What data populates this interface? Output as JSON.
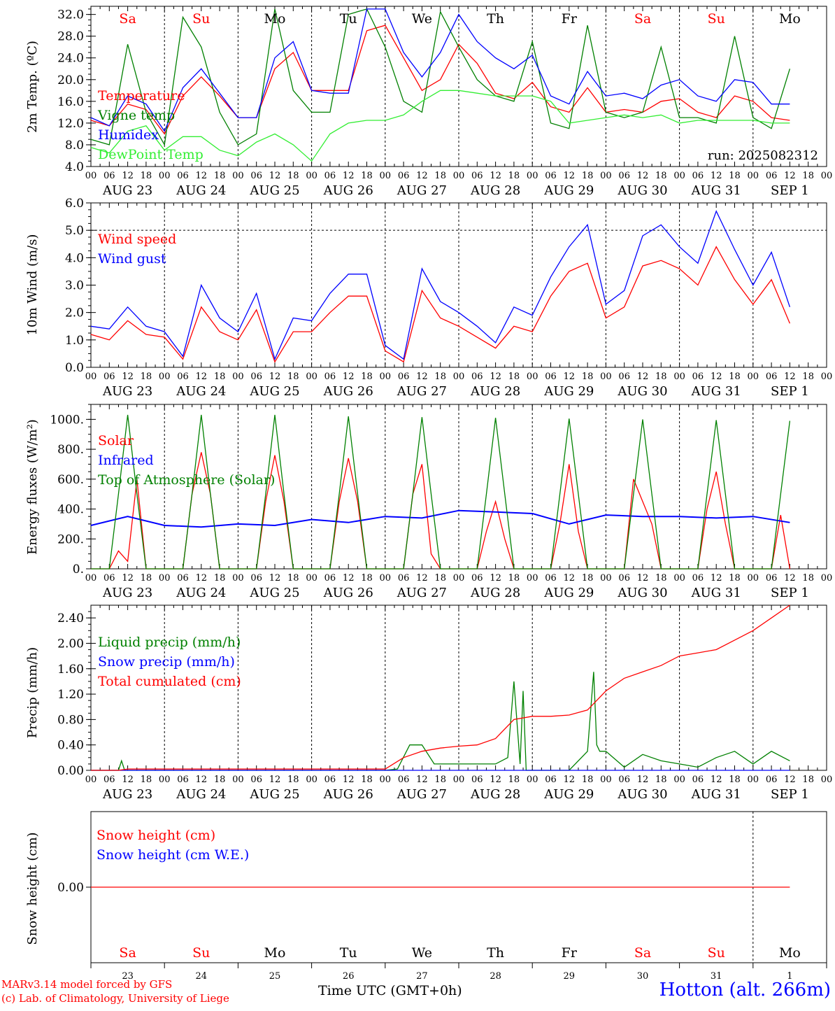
{
  "chart_data": [
    {
      "type": "line",
      "ylabel": "2m Temp. (ºC)",
      "ylim": [
        4,
        33.5
      ],
      "yticks": [
        "4.0",
        "8.0",
        "12.0",
        "16.0",
        "20.0",
        "24.0",
        "28.0",
        "32.0"
      ],
      "annotation": "run: 2025082312",
      "series": [
        {
          "name": "Temperature",
          "color": "#ff0000",
          "x": [
            0,
            6,
            12,
            18,
            24,
            30,
            36,
            42,
            48,
            54,
            60,
            66,
            72,
            78,
            84,
            90,
            96,
            102,
            108,
            114,
            120,
            126,
            132,
            138,
            144,
            150,
            156,
            162,
            168,
            174,
            180,
            186,
            192,
            198,
            204,
            210,
            216,
            222,
            228
          ],
          "values": [
            12.5,
            11.5,
            15.5,
            14.5,
            10,
            17,
            20.5,
            17,
            13,
            13,
            22,
            25,
            18,
            18,
            18,
            29,
            30,
            24,
            18,
            20,
            26.5,
            23,
            17.5,
            16.5,
            19.5,
            15,
            14,
            18.5,
            14,
            14.5,
            14,
            16,
            16.5,
            14,
            13,
            17,
            16,
            13,
            12.5
          ]
        },
        {
          "name": "Vigne temp",
          "color": "#008000",
          "x": [
            0,
            6,
            12,
            18,
            24,
            30,
            36,
            42,
            48,
            54,
            60,
            66,
            72,
            78,
            84,
            90,
            96,
            102,
            108,
            114,
            120,
            126,
            132,
            138,
            144,
            150,
            156,
            162,
            168,
            174,
            180,
            186,
            192,
            198,
            204,
            210,
            216,
            222,
            228
          ],
          "values": [
            9,
            8,
            26.5,
            14,
            8,
            31.5,
            26,
            14,
            8,
            10,
            33,
            18,
            14,
            14,
            32,
            33,
            26,
            16,
            14,
            32.5,
            26,
            20,
            17,
            16,
            27,
            12,
            11,
            30,
            14,
            13,
            14,
            26,
            13,
            13,
            12,
            28,
            13,
            11,
            22
          ]
        },
        {
          "name": "Humidex",
          "color": "#0000ff",
          "x": [
            0,
            6,
            12,
            18,
            24,
            30,
            36,
            42,
            48,
            54,
            60,
            66,
            72,
            78,
            84,
            90,
            96,
            102,
            108,
            114,
            120,
            126,
            132,
            138,
            144,
            150,
            156,
            162,
            168,
            174,
            180,
            186,
            192,
            198,
            204,
            210,
            216,
            222,
            228
          ],
          "values": [
            13,
            11.5,
            17,
            15.5,
            10.5,
            18.5,
            22,
            17.5,
            13,
            13,
            24,
            27,
            18,
            17.5,
            17.5,
            33,
            33,
            25,
            20.5,
            25,
            32,
            27,
            24,
            22,
            24.5,
            17,
            15.5,
            21.5,
            17,
            17.5,
            16.5,
            19,
            20,
            17,
            16,
            20,
            19.5,
            15.5,
            15.5
          ]
        },
        {
          "name": "DewPoint Temp",
          "color": "#33ee33",
          "x": [
            0,
            6,
            12,
            18,
            24,
            30,
            36,
            42,
            48,
            54,
            60,
            66,
            72,
            78,
            84,
            90,
            96,
            102,
            108,
            114,
            120,
            126,
            132,
            138,
            144,
            150,
            156,
            162,
            168,
            174,
            180,
            186,
            192,
            198,
            204,
            210,
            216,
            222,
            228
          ],
          "values": [
            7.5,
            6.5,
            10.5,
            11.5,
            7,
            9.5,
            9.5,
            7,
            6,
            8.5,
            10,
            8,
            5,
            10,
            12,
            12.5,
            12.5,
            13.5,
            16,
            18,
            18,
            17.5,
            17,
            17,
            17,
            16,
            12,
            12.5,
            13,
            13.5,
            13,
            13.5,
            12,
            12.5,
            12.5,
            12.5,
            12.5,
            12,
            12
          ]
        }
      ]
    },
    {
      "type": "line",
      "ylabel": "10m Wind (m/s)",
      "ylim": [
        0,
        6
      ],
      "yticks": [
        "0.0",
        "1.0",
        "2.0",
        "3.0",
        "4.0",
        "5.0",
        "6.0"
      ],
      "reference_line": 5.0,
      "series": [
        {
          "name": "Wind speed",
          "color": "#ff0000",
          "x": [
            0,
            6,
            12,
            18,
            24,
            30,
            36,
            42,
            48,
            54,
            60,
            66,
            72,
            78,
            84,
            90,
            96,
            102,
            108,
            114,
            120,
            126,
            132,
            138,
            144,
            150,
            156,
            162,
            168,
            174,
            180,
            186,
            192,
            198,
            204,
            210,
            216,
            222,
            228
          ],
          "values": [
            1.2,
            1.0,
            1.7,
            1.2,
            1.1,
            0.3,
            2.2,
            1.3,
            1.0,
            2.1,
            0.2,
            1.3,
            1.3,
            2.0,
            2.6,
            2.6,
            0.6,
            0.2,
            2.8,
            1.8,
            1.5,
            1.1,
            0.7,
            1.5,
            1.3,
            2.6,
            3.5,
            3.8,
            1.8,
            2.2,
            3.7,
            3.9,
            3.6,
            3.0,
            4.4,
            3.2,
            2.3,
            3.2,
            1.6
          ]
        },
        {
          "name": "Wind gust",
          "color": "#0000ff",
          "x": [
            0,
            6,
            12,
            18,
            24,
            30,
            36,
            42,
            48,
            54,
            60,
            66,
            72,
            78,
            84,
            90,
            96,
            102,
            108,
            114,
            120,
            126,
            132,
            138,
            144,
            150,
            156,
            162,
            168,
            174,
            180,
            186,
            192,
            198,
            204,
            210,
            216,
            222,
            228
          ],
          "values": [
            1.5,
            1.4,
            2.2,
            1.5,
            1.3,
            0.4,
            3.0,
            1.8,
            1.3,
            2.7,
            0.3,
            1.8,
            1.7,
            2.7,
            3.4,
            3.4,
            0.8,
            0.3,
            3.6,
            2.4,
            2.0,
            1.5,
            0.9,
            2.2,
            1.9,
            3.3,
            4.4,
            5.2,
            2.3,
            2.8,
            4.8,
            5.2,
            4.4,
            3.8,
            5.7,
            4.3,
            3.0,
            4.2,
            2.2
          ]
        }
      ]
    },
    {
      "type": "line",
      "ylabel": "Energy fluxes (W/m²)",
      "ylim": [
        0,
        1100
      ],
      "yticks": [
        "0.",
        "200.",
        "400.",
        "600.",
        "800.",
        "1000."
      ],
      "series": [
        {
          "name": "Solar",
          "color": "#ff0000",
          "x": [
            0,
            6,
            9,
            12,
            15,
            18,
            24,
            30,
            33,
            36,
            39,
            42,
            48,
            54,
            57,
            60,
            63,
            66,
            72,
            78,
            81,
            84,
            87,
            90,
            96,
            102,
            105,
            108,
            111,
            114,
            120,
            126,
            129,
            132,
            135,
            138,
            144,
            150,
            153,
            156,
            159,
            162,
            168,
            174,
            177,
            180,
            183,
            186,
            192,
            198,
            201,
            204,
            207,
            210,
            216,
            222,
            225,
            228
          ],
          "values": [
            0,
            0,
            120,
            50,
            600,
            0,
            0,
            0,
            500,
            780,
            500,
            0,
            0,
            0,
            450,
            760,
            450,
            0,
            0,
            0,
            450,
            740,
            450,
            0,
            0,
            0,
            500,
            700,
            100,
            0,
            0,
            0,
            250,
            450,
            200,
            0,
            0,
            0,
            300,
            700,
            250,
            0,
            0,
            0,
            600,
            450,
            300,
            0,
            0,
            0,
            400,
            650,
            300,
            0,
            0,
            0,
            360,
            0
          ]
        },
        {
          "name": "Infrared",
          "color": "#0000ff",
          "x": [
            0,
            12,
            24,
            36,
            48,
            60,
            72,
            84,
            96,
            108,
            120,
            132,
            144,
            156,
            168,
            180,
            192,
            204,
            216,
            228
          ],
          "values": [
            290,
            350,
            290,
            280,
            300,
            290,
            330,
            310,
            350,
            340,
            390,
            380,
            370,
            300,
            360,
            350,
            350,
            340,
            350,
            310
          ]
        },
        {
          "name": "Top of Atmosphere (Solar)",
          "color": "#008000",
          "x": [
            0,
            6,
            9,
            12,
            15,
            18,
            24,
            30,
            33,
            36,
            39,
            42,
            48,
            54,
            57,
            60,
            63,
            66,
            72,
            78,
            81,
            84,
            87,
            90,
            96,
            102,
            105,
            108,
            111,
            114,
            120,
            126,
            129,
            132,
            135,
            138,
            144,
            150,
            153,
            156,
            159,
            162,
            168,
            174,
            177,
            180,
            183,
            186,
            192,
            198,
            201,
            204,
            207,
            210,
            216,
            222,
            225,
            228
          ],
          "values": [
            0,
            0,
            500,
            1030,
            500,
            0,
            0,
            0,
            500,
            1030,
            500,
            0,
            0,
            0,
            500,
            1030,
            500,
            0,
            0,
            0,
            500,
            1020,
            500,
            0,
            0,
            0,
            500,
            1015,
            500,
            0,
            0,
            0,
            500,
            1010,
            500,
            0,
            0,
            0,
            500,
            1005,
            500,
            0,
            0,
            0,
            500,
            1000,
            500,
            0,
            0,
            0,
            500,
            995,
            500,
            0,
            0,
            0,
            500,
            990
          ]
        }
      ]
    },
    {
      "type": "line",
      "ylabel": "Precip (mm/h)",
      "ylim": [
        0,
        2.6
      ],
      "yticks": [
        "0.00",
        "0.40",
        "0.80",
        "1.20",
        "1.60",
        "2.00",
        "2.40"
      ],
      "series": [
        {
          "name": "Liquid precip (mm/h)",
          "color": "#008000",
          "x": [
            0,
            9,
            10,
            11,
            12,
            24,
            48,
            72,
            96,
            100,
            104,
            108,
            112,
            120,
            126,
            132,
            136,
            138,
            140,
            141,
            142,
            143,
            144,
            150,
            156,
            162,
            164,
            165,
            166,
            168,
            174,
            180,
            186,
            192,
            198,
            204,
            210,
            216,
            222,
            228
          ],
          "values": [
            0,
            0,
            0.15,
            0,
            0,
            0,
            0,
            0,
            0,
            0.02,
            0.4,
            0.4,
            0.1,
            0.1,
            0.1,
            0.1,
            0.2,
            1.4,
            0.1,
            1.25,
            0,
            0,
            0,
            0,
            0,
            0.3,
            1.55,
            0.4,
            0.3,
            0.3,
            0.05,
            0.25,
            0.15,
            0.1,
            0.05,
            0.2,
            0.3,
            0.1,
            0.3,
            0.15
          ]
        },
        {
          "name": "Snow precip (mm/h)",
          "color": "#0000ff",
          "x": [
            0,
            228
          ],
          "values": [
            0,
            0
          ]
        },
        {
          "name": "Total cumulated (cm)",
          "color": "#ff0000",
          "x": [
            0,
            9,
            12,
            24,
            48,
            72,
            96,
            102,
            108,
            114,
            120,
            126,
            132,
            138,
            144,
            150,
            156,
            162,
            168,
            174,
            180,
            186,
            192,
            198,
            204,
            210,
            216,
            222,
            228
          ],
          "values": [
            0,
            0,
            0.02,
            0.02,
            0.02,
            0.02,
            0.02,
            0.2,
            0.3,
            0.35,
            0.38,
            0.4,
            0.5,
            0.8,
            0.85,
            0.85,
            0.87,
            0.95,
            1.25,
            1.45,
            1.55,
            1.65,
            1.8,
            1.85,
            1.9,
            2.05,
            2.2,
            2.4,
            2.6
          ]
        }
      ]
    },
    {
      "type": "line",
      "ylabel": "Snow height (cm)",
      "ylim": [
        -1,
        1
      ],
      "yticks": [
        "0.00"
      ],
      "series": [
        {
          "name": "Snow height (cm)",
          "color": "#ff0000",
          "x": [
            0,
            228
          ],
          "values": [
            0,
            0
          ]
        },
        {
          "name": "Snow height (cm W.E.)",
          "color": "#0000ff",
          "x": [],
          "values": []
        }
      ]
    }
  ],
  "hour_ticks": [
    "00",
    "06",
    "12",
    "18"
  ],
  "day_labels": [
    "AUG 23",
    "AUG 24",
    "AUG 25",
    "AUG 26",
    "AUG 27",
    "AUG 28",
    "AUG 29",
    "AUG 30",
    "AUG 31",
    "SEP 1"
  ],
  "weekday_labels": [
    "Sa",
    "Su",
    "Mo",
    "Tu",
    "We",
    "Th",
    "Fr",
    "Sa",
    "Su",
    "Mo"
  ],
  "weekday_colors": [
    "#ff0000",
    "#ff0000",
    "#000000",
    "#000000",
    "#000000",
    "#000000",
    "#000000",
    "#ff0000",
    "#ff0000",
    "#000000"
  ],
  "day_numbers": [
    "23",
    "24",
    "25",
    "26",
    "27",
    "28",
    "29",
    "30",
    "31",
    "1"
  ],
  "footer": {
    "credit_line1": "MARv3.14 model forced by GFS",
    "credit_line2": "(c) Lab. of Climatology, University of Liege",
    "time_label": "Time UTC (GMT+0h)",
    "station": "Hotton (alt. 266m)"
  }
}
